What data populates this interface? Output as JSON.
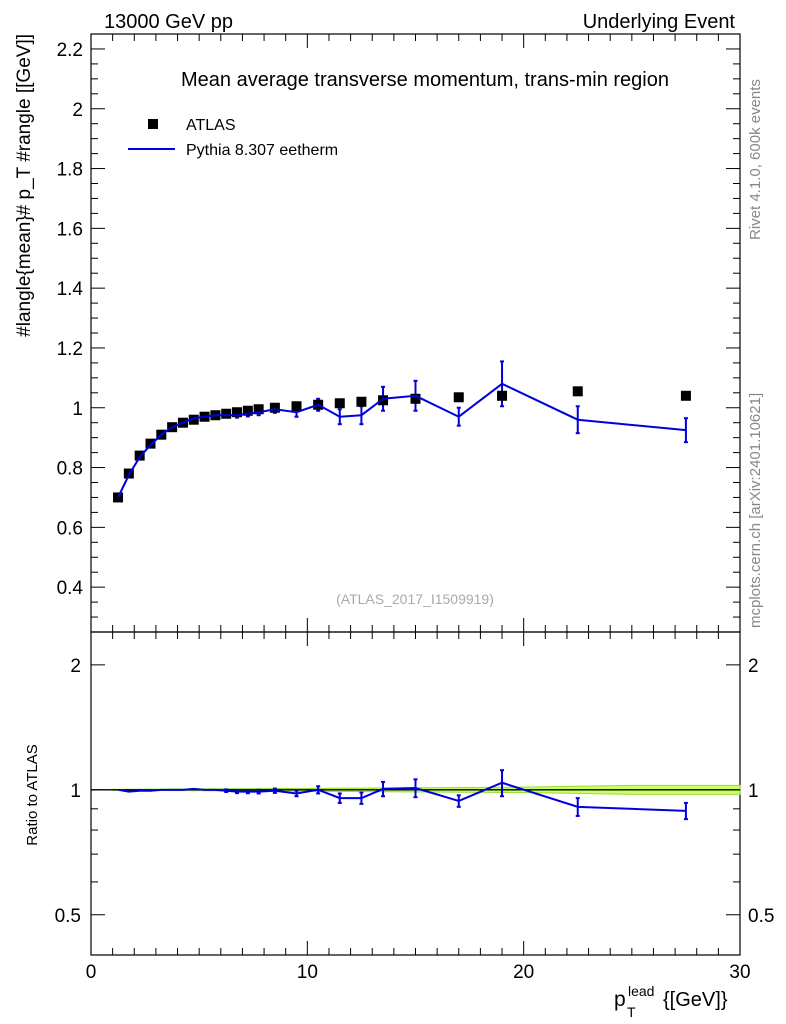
{
  "header": {
    "left": "13000 GeV pp",
    "right": "Underlying Event"
  },
  "side_labels": {
    "rivet": "Rivet 4.1.0,  600k events",
    "source": "mcplots.cern.ch [arXiv:2401.10621]"
  },
  "colors": {
    "data": "#000000",
    "mc": "#0000dd",
    "band": "#ccff66",
    "band_edge": "#99dd33",
    "reference_line": "#000000"
  },
  "chart_data": [
    {
      "type": "scatter",
      "panel": "main",
      "title": "Mean average transverse momentum, trans-min region",
      "analysis_tag": "(ATLAS_2017_I1509919)",
      "xlabel": "p_T^lead [[GeV]]",
      "ylabel": "#langle{mean}# p_T #rangle [[GeV]]",
      "xlim": [
        0,
        30
      ],
      "ylim": [
        0.25,
        2.25
      ],
      "x_ticks": [
        0,
        10,
        20,
        30
      ],
      "y_ticks": [
        0.4,
        0.6,
        0.8,
        1,
        1.2,
        1.4,
        1.6,
        1.8,
        2,
        2.2
      ],
      "y_tick_labels": [
        "0.4",
        "0.6",
        "0.8",
        "1",
        "1.2",
        "1.4",
        "1.6",
        "1.8",
        "2",
        "2.2"
      ],
      "legend": {
        "position": "top-left",
        "entries": [
          "ATLAS",
          "Pythia 8.307 eetherm"
        ]
      },
      "series": [
        {
          "name": "ATLAS",
          "style": "markers",
          "x": [
            1.25,
            1.75,
            2.25,
            2.75,
            3.25,
            3.75,
            4.25,
            4.75,
            5.25,
            5.75,
            6.25,
            6.75,
            7.25,
            7.75,
            8.5,
            9.5,
            10.5,
            11.5,
            12.5,
            13.5,
            15,
            17,
            19,
            22.5,
            27.5
          ],
          "y": [
            0.7,
            0.78,
            0.84,
            0.88,
            0.91,
            0.935,
            0.95,
            0.96,
            0.97,
            0.975,
            0.98,
            0.985,
            0.99,
            0.995,
            1.0,
            1.005,
            1.01,
            1.015,
            1.02,
            1.025,
            1.03,
            1.035,
            1.04,
            1.055,
            1.04
          ]
        },
        {
          "name": "Pythia 8.307 eetherm",
          "style": "line",
          "x": [
            1.25,
            1.75,
            2.25,
            2.75,
            3.25,
            3.75,
            4.25,
            4.75,
            5.25,
            5.75,
            6.25,
            6.75,
            7.25,
            7.75,
            8.5,
            9.5,
            10.5,
            11.5,
            12.5,
            13.5,
            15,
            17,
            19,
            22.5,
            27.5
          ],
          "y": [
            0.7,
            0.775,
            0.835,
            0.875,
            0.91,
            0.935,
            0.95,
            0.965,
            0.97,
            0.975,
            0.975,
            0.975,
            0.98,
            0.985,
            0.995,
            0.985,
            1.01,
            0.97,
            0.975,
            1.03,
            1.04,
            0.97,
            1.08,
            0.96,
            0.925
          ],
          "err": [
            0.005,
            0.005,
            0.005,
            0.005,
            0.005,
            0.005,
            0.005,
            0.005,
            0.005,
            0.006,
            0.007,
            0.008,
            0.009,
            0.01,
            0.012,
            0.015,
            0.02,
            0.025,
            0.03,
            0.04,
            0.05,
            0.03,
            0.075,
            0.045,
            0.04
          ]
        }
      ]
    },
    {
      "type": "line",
      "panel": "ratio",
      "ylabel": "Ratio to ATLAS",
      "xlim": [
        0,
        30
      ],
      "ylim": [
        0.4,
        2.4
      ],
      "scale": "log",
      "x_ticks": [
        0,
        10,
        20,
        30
      ],
      "x_tick_labels": [
        "0",
        "10",
        "20",
        "30"
      ],
      "y_ticks": [
        0.5,
        1,
        2
      ],
      "y_tick_labels": [
        "0.5",
        "1",
        "2"
      ],
      "series": [
        {
          "name": "Pythia 8.307 eetherm / ATLAS",
          "x": [
            1.25,
            1.75,
            2.25,
            2.75,
            3.25,
            3.75,
            4.25,
            4.75,
            5.25,
            5.75,
            6.25,
            6.75,
            7.25,
            7.75,
            8.5,
            9.5,
            10.5,
            11.5,
            12.5,
            13.5,
            15,
            17,
            19,
            22.5,
            27.5
          ],
          "y": [
            1.0,
            0.99,
            0.995,
            0.995,
            1.0,
            1.0,
            1.0,
            1.005,
            1.0,
            1.0,
            0.995,
            0.99,
            0.99,
            0.99,
            0.995,
            0.98,
            1.0,
            0.955,
            0.955,
            1.005,
            1.01,
            0.94,
            1.04,
            0.91,
            0.89
          ],
          "err": [
            0.005,
            0.005,
            0.005,
            0.005,
            0.005,
            0.005,
            0.005,
            0.005,
            0.005,
            0.006,
            0.007,
            0.008,
            0.009,
            0.01,
            0.012,
            0.015,
            0.02,
            0.025,
            0.03,
            0.04,
            0.05,
            0.03,
            0.075,
            0.045,
            0.04
          ]
        }
      ],
      "band": {
        "x": [
          1.0,
          10,
          20,
          25,
          30
        ],
        "low": [
          0.997,
          0.992,
          0.985,
          0.975,
          0.975
        ],
        "high": [
          1.003,
          1.008,
          1.015,
          1.025,
          1.025
        ]
      }
    }
  ]
}
